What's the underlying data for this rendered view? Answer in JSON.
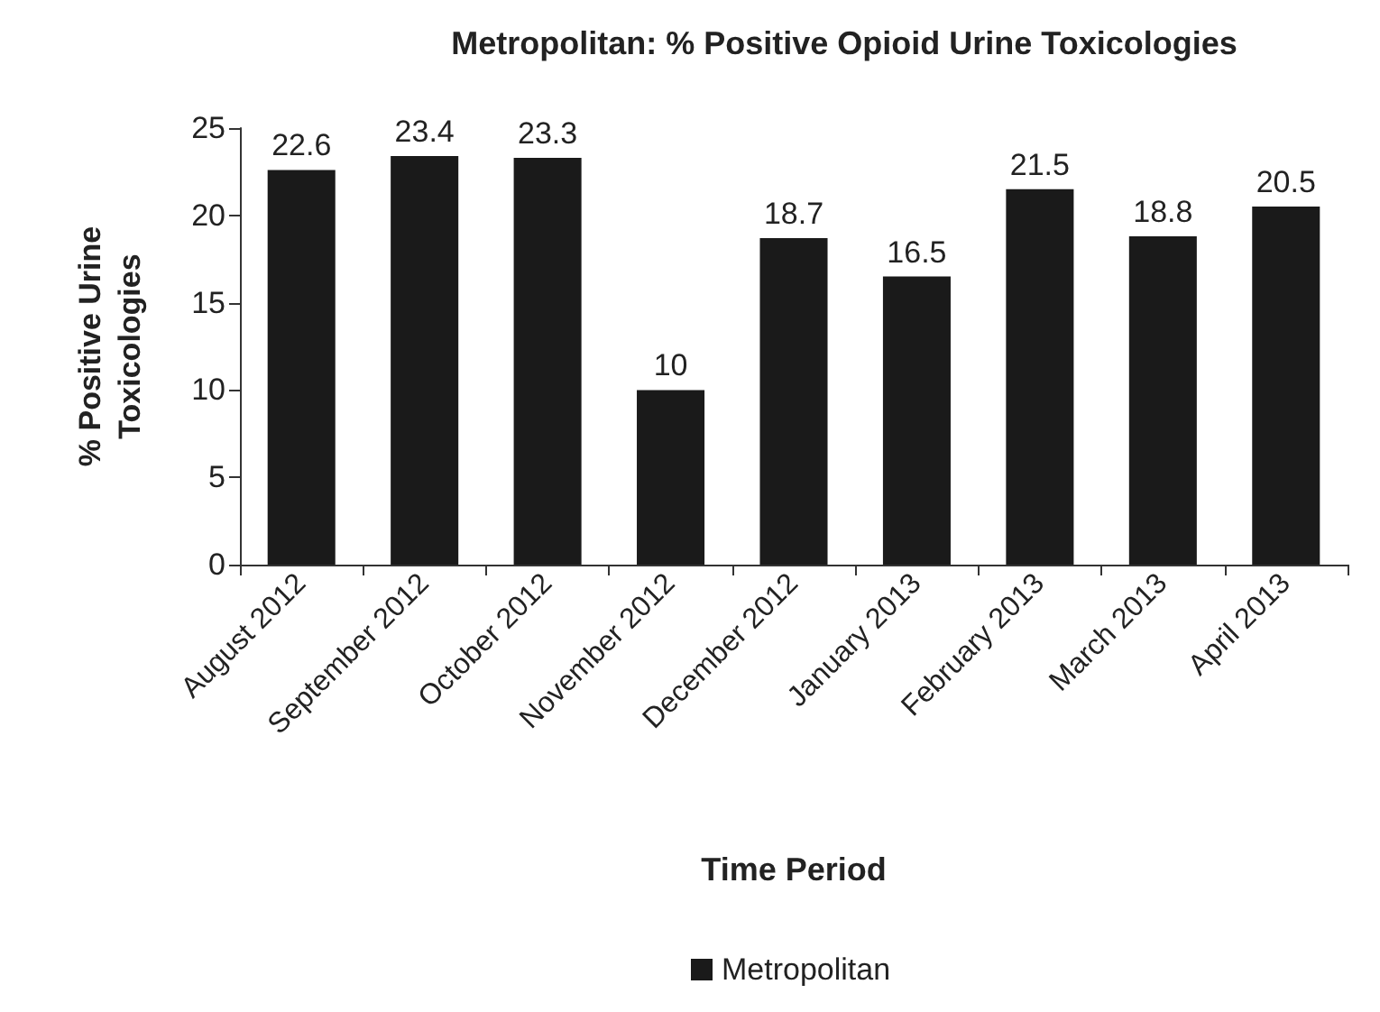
{
  "chart_data": {
    "type": "bar",
    "title": "Metropolitan: % Positive Opioid Urine Toxicologies",
    "xlabel": "Time Period",
    "ylabel": "% Positive Urine\nToxicologies",
    "categories": [
      "August 2012",
      "September 2012",
      "October 2012",
      "November 2012",
      "December 2012",
      "January 2013",
      "February 2013",
      "March 2013",
      "April 2013"
    ],
    "series": [
      {
        "name": "Metropolitan",
        "color": "#1a1a1a",
        "values": [
          22.6,
          23.4,
          23.3,
          10,
          18.7,
          16.5,
          21.5,
          18.8,
          20.5
        ]
      }
    ],
    "ylim": [
      0,
      25
    ],
    "yticks": [
      0,
      5,
      10,
      15,
      20,
      25
    ],
    "grid": false,
    "legend": "bottom",
    "data_labels": true
  }
}
